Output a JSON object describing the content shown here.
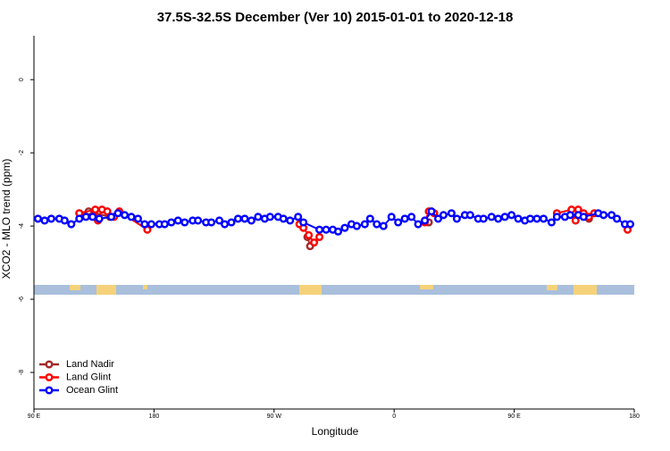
{
  "chart_data": {
    "type": "line",
    "title": "37.5S-32.5S December (Ver 10)   2015-01-01 to 2020-12-18",
    "x_label": "Longitude",
    "y_label": "XCO2 - MLO trend (ppm)",
    "xlim": [
      90,
      540
    ],
    "ylim": [
      -9,
      1.2
    ],
    "xticks": [
      {
        "value": 90,
        "label": "90 E"
      },
      {
        "value": 180,
        "label": "180"
      },
      {
        "value": 270,
        "label": "90 W"
      },
      {
        "value": 360,
        "label": "0"
      },
      {
        "value": 450,
        "label": "90 E"
      },
      {
        "value": 540,
        "label": "180"
      }
    ],
    "yticks": [
      0,
      -2,
      -4,
      -6,
      -8
    ],
    "legend": "bottom-left",
    "series": [
      {
        "name": "Land Nadir",
        "color": "#a52a2a",
        "x": [
          124,
          131,
          147,
          null,
          295,
          297,
          null,
          386,
          null,
          506
        ],
        "values": [
          -3.65,
          -3.6,
          -3.75,
          null,
          -4.3,
          -4.55,
          null,
          -3.9,
          null,
          -3.8
        ]
      },
      {
        "name": "Land Glint",
        "color": "#ff0000",
        "x": [
          124,
          136,
          138,
          141,
          145,
          150,
          154,
          175,
          null,
          289,
          292,
          296,
          300,
          304,
          null,
          383,
          386,
          390,
          null,
          482,
          493,
          496,
          498,
          502,
          506,
          510,
          null,
          535
        ],
        "values": [
          -3.65,
          -3.55,
          -3.85,
          -3.55,
          -3.6,
          -3.75,
          -3.6,
          -4.1,
          null,
          -3.95,
          -4.05,
          -4.25,
          -4.45,
          -4.3,
          null,
          -3.9,
          -3.6,
          -3.65,
          null,
          -3.65,
          -3.55,
          -3.85,
          -3.55,
          -3.65,
          -3.75,
          -3.65,
          null,
          -4.1
        ]
      },
      {
        "name": "Ocean Glint",
        "color": "#0000ff",
        "x": [
          93,
          98,
          103,
          109,
          113,
          118,
          124,
          129,
          134,
          139,
          148,
          153,
          158,
          163,
          168,
          173,
          178,
          184,
          188,
          193,
          198,
          203,
          209,
          213,
          219,
          223,
          229,
          233,
          238,
          243,
          248,
          253,
          258,
          263,
          267,
          273,
          277,
          282,
          288,
          292,
          304,
          309,
          314,
          318,
          323,
          328,
          332,
          338,
          342,
          347,
          352,
          358,
          363,
          368,
          373,
          378,
          383,
          388,
          393,
          397,
          403,
          407,
          413,
          417,
          423,
          427,
          433,
          438,
          443,
          448,
          453,
          458,
          462,
          467,
          472,
          478,
          482,
          488,
          492,
          498,
          502,
          513,
          517,
          523,
          527,
          533,
          537
        ],
        "values": [
          -3.8,
          -3.85,
          -3.8,
          -3.8,
          -3.85,
          -3.95,
          -3.8,
          -3.75,
          -3.75,
          -3.8,
          -3.75,
          -3.65,
          -3.7,
          -3.75,
          -3.8,
          -3.95,
          -3.95,
          -3.95,
          -3.95,
          -3.9,
          -3.85,
          -3.9,
          -3.85,
          -3.85,
          -3.9,
          -3.9,
          -3.85,
          -3.95,
          -3.9,
          -3.8,
          -3.8,
          -3.85,
          -3.75,
          -3.8,
          -3.75,
          -3.75,
          -3.8,
          -3.85,
          -3.75,
          -3.9,
          -4.1,
          -4.1,
          -4.1,
          -4.15,
          -4.05,
          -3.95,
          -4.0,
          -3.95,
          -3.8,
          -3.95,
          -4.0,
          -3.75,
          -3.9,
          -3.8,
          -3.75,
          -3.95,
          -3.85,
          -3.6,
          -3.8,
          -3.7,
          -3.65,
          -3.8,
          -3.7,
          -3.7,
          -3.8,
          -3.8,
          -3.75,
          -3.8,
          -3.75,
          -3.7,
          -3.8,
          -3.85,
          -3.8,
          -3.8,
          -3.8,
          -3.9,
          -3.75,
          -3.75,
          -3.7,
          -3.7,
          -3.75,
          -3.65,
          -3.7,
          -3.7,
          -3.8,
          -3.95,
          -3.95
        ]
      }
    ]
  }
}
